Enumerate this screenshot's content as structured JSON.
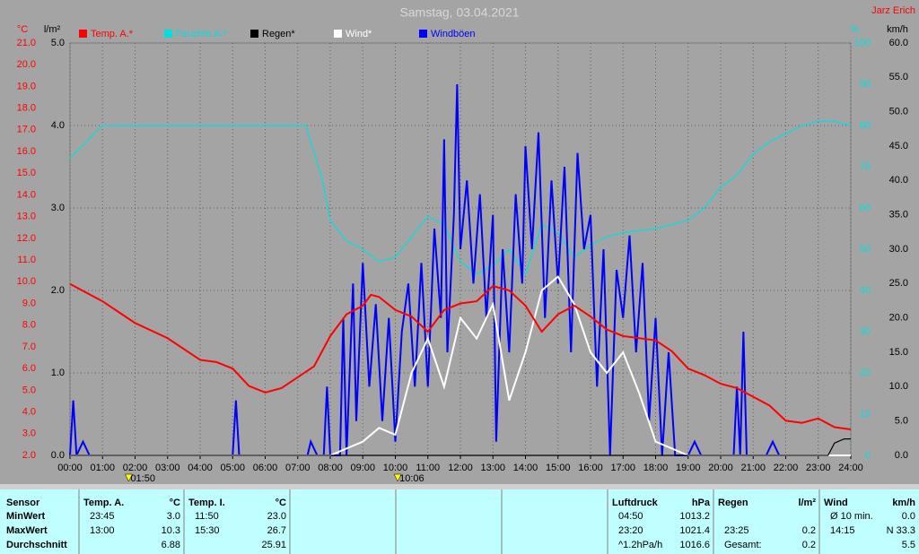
{
  "chart_data": {
    "type": "line",
    "title": "Samstag, 03.04.2021",
    "author": "Jarz Erich",
    "xlim": [
      0,
      24
    ],
    "xticks": [
      {
        "value": 0,
        "label": "00:00"
      },
      {
        "value": 1,
        "label": "01:00"
      },
      {
        "value": 2,
        "label": "02:00"
      },
      {
        "value": 3,
        "label": "03:00"
      },
      {
        "value": 4,
        "label": "04:00"
      },
      {
        "value": 5,
        "label": "05:00"
      },
      {
        "value": 6,
        "label": "06:00"
      },
      {
        "value": 7,
        "label": "07:00"
      },
      {
        "value": 8,
        "label": "08:00"
      },
      {
        "value": 9,
        "label": "09:00"
      },
      {
        "value": 10,
        "label": "10:00"
      },
      {
        "value": 11,
        "label": "11:00"
      },
      {
        "value": 12,
        "label": "12:00"
      },
      {
        "value": 13,
        "label": "13:00"
      },
      {
        "value": 14,
        "label": "14:00"
      },
      {
        "value": 15,
        "label": "15:00"
      },
      {
        "value": 16,
        "label": "16:00"
      },
      {
        "value": 17,
        "label": "17:00"
      },
      {
        "value": 18,
        "label": "18:00"
      },
      {
        "value": 19,
        "label": "19:00"
      },
      {
        "value": 20,
        "label": "20:00"
      },
      {
        "value": 21,
        "label": "21:00"
      },
      {
        "value": 22,
        "label": "22:00"
      },
      {
        "value": 23,
        "label": "23:00"
      },
      {
        "value": 24,
        "label": "24:00"
      }
    ],
    "grid": true,
    "axes": [
      {
        "label": "°C",
        "color": "#ff0000",
        "lim": [
          2,
          21
        ],
        "ticks": [
          {
            "value": 2,
            "label": "2.0"
          },
          {
            "value": 3,
            "label": "3.0"
          },
          {
            "value": 4,
            "label": "4.0"
          },
          {
            "value": 5,
            "label": "5.0"
          },
          {
            "value": 6,
            "label": "6.0"
          },
          {
            "value": 7,
            "label": "7.0"
          },
          {
            "value": 8,
            "label": "8.0"
          },
          {
            "value": 9,
            "label": "9.0"
          },
          {
            "value": 10,
            "label": "10.0"
          },
          {
            "value": 11,
            "label": "11.0"
          },
          {
            "value": 12,
            "label": "12.0"
          },
          {
            "value": 13,
            "label": "13.0"
          },
          {
            "value": 14,
            "label": "14.0"
          },
          {
            "value": 15,
            "label": "15.0"
          },
          {
            "value": 16,
            "label": "16.0"
          },
          {
            "value": 17,
            "label": "17.0"
          },
          {
            "value": 18,
            "label": "18.0"
          },
          {
            "value": 19,
            "label": "19.0"
          },
          {
            "value": 20,
            "label": "20.0"
          },
          {
            "value": 21,
            "label": "21.0"
          }
        ]
      },
      {
        "label": "l/m²",
        "color": "#000000",
        "lim": [
          0,
          5
        ],
        "grid": true,
        "ticks": [
          {
            "value": 0,
            "label": "0.0"
          },
          {
            "value": 1,
            "label": "1.0"
          },
          {
            "value": 2,
            "label": "2.0"
          },
          {
            "value": 3,
            "label": "3.0"
          },
          {
            "value": 4,
            "label": "4.0"
          },
          {
            "value": 5,
            "label": "5.0"
          }
        ]
      },
      {
        "label": "%",
        "color": "#00e0e0",
        "lim": [
          0,
          100
        ],
        "ticks": [
          0,
          10,
          20,
          30,
          40,
          50,
          60,
          70,
          80,
          90,
          100
        ]
      },
      {
        "label": "km/h",
        "color": "#000000",
        "lim": [
          0,
          60
        ],
        "ticks": [
          {
            "value": 0,
            "label": "0.0"
          },
          {
            "value": 5,
            "label": "5.0"
          },
          {
            "value": 10,
            "label": "10.0"
          },
          {
            "value": 15,
            "label": "15.0"
          },
          {
            "value": 20,
            "label": "20.0"
          },
          {
            "value": 25,
            "label": "25.0"
          },
          {
            "value": 30,
            "label": "30.0"
          },
          {
            "value": 35,
            "label": "35.0"
          },
          {
            "value": 40,
            "label": "40.0"
          },
          {
            "value": 45,
            "label": "45.0"
          },
          {
            "value": 50,
            "label": "50.0"
          },
          {
            "value": 55,
            "label": "55.0"
          },
          {
            "value": 60,
            "label": "60.0"
          }
        ]
      }
    ],
    "series": [
      {
        "name": "Temp. A.*",
        "color": "#ff0000",
        "axis": 0,
        "x": [
          0,
          1,
          2,
          3,
          4,
          4.5,
          5,
          5.5,
          6,
          6.5,
          7,
          7.5,
          8,
          8.5,
          9,
          9.25,
          9.5,
          10,
          10.5,
          11,
          11.5,
          12,
          12.5,
          13,
          13.5,
          14,
          14.5,
          15,
          15.5,
          16,
          16.5,
          17,
          17.5,
          18,
          18.5,
          19,
          19.5,
          20,
          20.5,
          21,
          21.5,
          22,
          22.5,
          23,
          23.5,
          24
        ],
        "values": [
          9.9,
          9.1,
          8.1,
          7.4,
          6.4,
          6.3,
          6.0,
          5.2,
          4.9,
          5.1,
          5.6,
          6.1,
          7.5,
          8.5,
          8.9,
          9.4,
          9.3,
          8.7,
          8.4,
          7.7,
          8.7,
          9.0,
          9.1,
          9.8,
          9.6,
          8.9,
          7.7,
          8.5,
          8.9,
          8.4,
          7.8,
          7.5,
          7.4,
          7.3,
          6.8,
          6.0,
          5.7,
          5.3,
          5.1,
          4.7,
          4.3,
          3.6,
          3.5,
          3.7,
          3.3,
          3.2
        ]
      },
      {
        "name": "Feuchte A.*",
        "color": "#00e0e0",
        "axis": 2,
        "x": [
          0,
          1,
          2,
          3,
          4,
          5,
          6,
          7,
          7.25,
          7.75,
          8,
          8.5,
          9,
          9.5,
          10,
          10.5,
          11,
          11.5,
          12,
          12.5,
          13,
          13.5,
          14,
          14.5,
          15,
          15.5,
          16,
          16.5,
          17,
          18,
          19,
          19.5,
          20,
          20.5,
          21,
          21.5,
          22,
          22.5,
          23,
          23.5,
          24
        ],
        "values": [
          72,
          80,
          80,
          80,
          80,
          80,
          80,
          80,
          80,
          67,
          57,
          52,
          50,
          47,
          48,
          53,
          58,
          56,
          47,
          44,
          46,
          50,
          44,
          56,
          54,
          48,
          51,
          53,
          54,
          55,
          57,
          60,
          65,
          68,
          73,
          76,
          78,
          80,
          81,
          81,
          80
        ]
      },
      {
        "name": "Regen*",
        "color": "#000000",
        "axis": 1,
        "x": [
          0,
          23.3,
          23.5,
          23.8,
          24
        ],
        "values": [
          0,
          0,
          0.15,
          0.2,
          0.2
        ]
      },
      {
        "name": "Wind*",
        "color": "#ffffff",
        "axis": 3,
        "x": [
          0,
          8,
          8.5,
          9,
          9.5,
          10,
          10.5,
          11,
          11.5,
          12,
          12.5,
          13,
          13.5,
          14,
          14.5,
          15,
          15.5,
          16,
          16.5,
          17,
          17.5,
          18,
          18.5,
          19,
          24
        ],
        "values": [
          0,
          0,
          1,
          2,
          4,
          3,
          12,
          17,
          10,
          20,
          17,
          22,
          8,
          15,
          24,
          26,
          22,
          15,
          12,
          15,
          9,
          2,
          1,
          0,
          0
        ]
      },
      {
        "name": "Windböen",
        "color": "#0000ff",
        "axis": 3,
        "x": [
          0,
          0.1,
          0.2,
          0.4,
          0.6,
          5,
          5.1,
          5.2,
          7.3,
          7.4,
          7.6,
          7.8,
          7.9,
          8,
          8.3,
          8.4,
          8.5,
          8.7,
          8.8,
          9,
          9.2,
          9.4,
          9.6,
          9.8,
          10,
          10.2,
          10.4,
          10.6,
          10.8,
          11,
          11.2,
          11.4,
          11.5,
          11.6,
          11.8,
          11.9,
          12,
          12.2,
          12.4,
          12.6,
          12.8,
          13,
          13.1,
          13.3,
          13.5,
          13.7,
          13.9,
          14,
          14.2,
          14.4,
          14.6,
          14.8,
          15,
          15.2,
          15.4,
          15.6,
          15.8,
          16,
          16.2,
          16.4,
          16.6,
          16.8,
          17,
          17.2,
          17.4,
          17.6,
          17.8,
          18,
          18.2,
          18.4,
          18.6,
          19,
          19.2,
          19.4,
          20.4,
          20.5,
          20.6,
          20.7,
          20.8,
          21.4,
          21.6,
          21.8,
          24
        ],
        "values": [
          0,
          8,
          0,
          2,
          0,
          0,
          8,
          0,
          0,
          2,
          0,
          0,
          10,
          0,
          0,
          20,
          0,
          25,
          5,
          28,
          10,
          22,
          5,
          20,
          2,
          18,
          25,
          10,
          28,
          10,
          33,
          20,
          46,
          15,
          35,
          54,
          30,
          40,
          25,
          38,
          20,
          35,
          2,
          30,
          15,
          38,
          25,
          45,
          30,
          47,
          20,
          40,
          25,
          42,
          15,
          44,
          30,
          35,
          10,
          30,
          0,
          27,
          20,
          32,
          15,
          28,
          5,
          20,
          0,
          15,
          0,
          0,
          2,
          0,
          0,
          10,
          0,
          18,
          0,
          0,
          2,
          0,
          0
        ]
      }
    ],
    "annotations": [
      {
        "x": 1.833,
        "text": "01:50"
      },
      {
        "x": 10.1,
        "text": "10:06"
      }
    ]
  },
  "table": {
    "rows": [
      [
        "Sensor",
        "Temp. A.",
        "°C",
        "Temp. I.",
        "°C",
        "Luftdruck",
        "hPa",
        "Regen",
        "l/m²",
        "Wind",
        "km/h"
      ],
      [
        "MinWert",
        "23:45",
        "3.0",
        "11:50",
        "23.0",
        "04:50",
        "1013.2",
        null,
        null,
        "Ø 10 min.",
        "0.0"
      ],
      [
        "MaxWert",
        "13:00",
        "10.3",
        "15:30",
        "26.7",
        "23:20",
        "1021.4",
        "23:25",
        "0.2",
        "14:15",
        "N 33.3"
      ],
      [
        "Durchschnitt",
        null,
        "6.88",
        null,
        "25.91",
        "^1.2hPa/h",
        "1016.6",
        "Gesamt:",
        "0.2",
        null,
        "5.5"
      ]
    ]
  }
}
